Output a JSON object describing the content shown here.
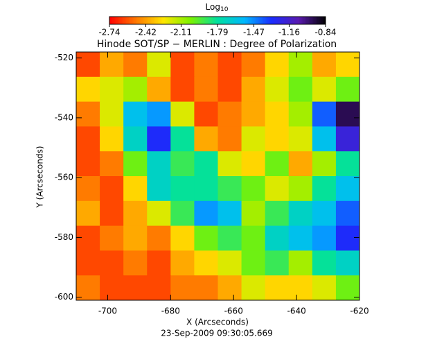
{
  "chart_data": {
    "type": "heatmap",
    "title": "Hinode SOT/SP − MERLIN : Degree of Polarization",
    "x_label": "X (Arcseconds)",
    "y_label": "Y (Arcseconds)",
    "footer": "23-Sep-2009 09:30:05.669",
    "colorbar_label": "Log",
    "colorbar_label_sub": "10",
    "xlim": [
      -710,
      -620
    ],
    "ylim": [
      -601,
      -518
    ],
    "xticks": [
      -700,
      -680,
      -660,
      -640,
      -620
    ],
    "yticks": [
      -520,
      -540,
      -560,
      -580,
      -600
    ],
    "clim": [
      -2.74,
      -0.84
    ],
    "colorbar_ticks": [
      -2.74,
      -2.42,
      -2.11,
      -1.79,
      -1.47,
      -1.16,
      -0.84
    ],
    "colormap": [
      "#ff0000",
      "#ff7a00",
      "#ffe600",
      "#7cf200",
      "#00e0a0",
      "#00b8ff",
      "#1a2cff",
      "#5a1ab0",
      "#000000"
    ],
    "values": [
      [
        -2.6,
        -2.4,
        -2.5,
        -2.2,
        -2.6,
        -2.5,
        -2.6,
        -2.5,
        -2.3,
        -2.1,
        -2.4,
        -2.3
      ],
      [
        -2.3,
        -2.2,
        -2.1,
        -2.4,
        -2.6,
        -2.5,
        -2.6,
        -2.4,
        -2.2,
        -2.0,
        -2.2,
        -2.0
      ],
      [
        -2.5,
        -2.2,
        -1.6,
        -1.5,
        -2.2,
        -2.6,
        -2.5,
        -2.4,
        -2.3,
        -2.1,
        -1.4,
        -0.95
      ],
      [
        -2.6,
        -2.3,
        -1.7,
        -1.3,
        -1.8,
        -2.4,
        -2.5,
        -2.2,
        -2.3,
        -2.2,
        -1.6,
        -1.2
      ],
      [
        -2.6,
        -2.5,
        -2.0,
        -1.7,
        -1.9,
        -1.8,
        -2.2,
        -2.3,
        -2.0,
        -2.4,
        -2.1,
        -1.8
      ],
      [
        -2.5,
        -2.6,
        -2.3,
        -1.7,
        -1.8,
        -1.8,
        -1.9,
        -2.0,
        -2.2,
        -2.1,
        -1.8,
        -1.6
      ],
      [
        -2.4,
        -2.6,
        -2.4,
        -2.2,
        -1.9,
        -1.5,
        -1.6,
        -2.1,
        -1.9,
        -1.7,
        -1.6,
        -1.4
      ],
      [
        -2.6,
        -2.5,
        -2.4,
        -2.5,
        -2.3,
        -2.0,
        -1.9,
        -2.0,
        -1.7,
        -1.6,
        -1.5,
        -1.3
      ],
      [
        -2.6,
        -2.6,
        -2.5,
        -2.6,
        -2.4,
        -2.3,
        -2.2,
        -2.0,
        -1.9,
        -2.1,
        -1.8,
        -1.7
      ],
      [
        -2.5,
        -2.6,
        -2.6,
        -2.6,
        -2.5,
        -2.5,
        -2.4,
        -2.2,
        -2.3,
        -2.3,
        -2.2,
        -2.0
      ]
    ]
  }
}
